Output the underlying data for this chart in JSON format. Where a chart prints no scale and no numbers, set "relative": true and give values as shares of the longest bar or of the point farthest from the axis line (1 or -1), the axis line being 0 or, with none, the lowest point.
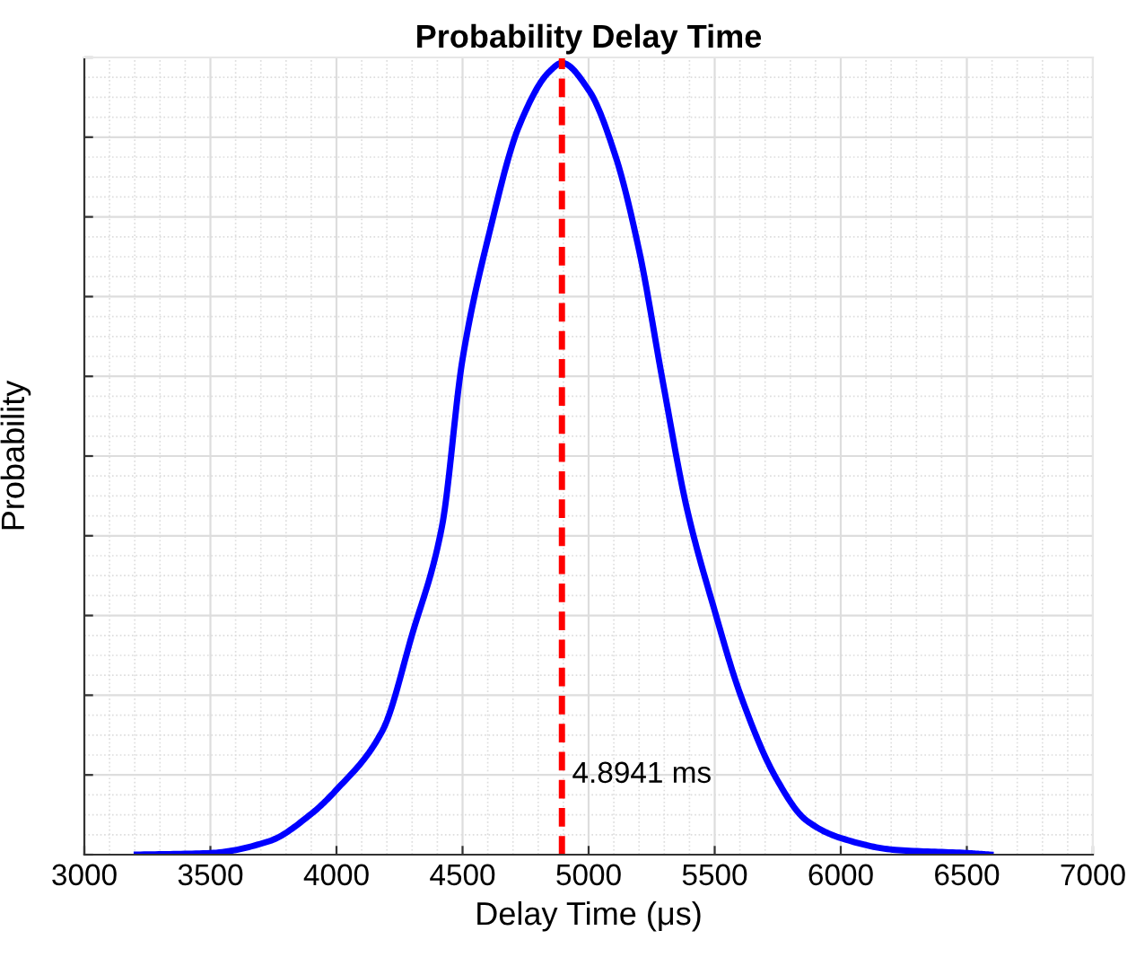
{
  "chart_data": {
    "type": "line",
    "title": "Probability Delay Time",
    "xlabel": "Delay Time (μs)",
    "ylabel": "Probability",
    "relative": true,
    "x": [
      3208,
      3500,
      3733,
      3898,
      4000,
      4183,
      4300,
      4418,
      4500,
      4606,
      4725,
      4844,
      4894,
      5000,
      5106,
      5201,
      5295,
      5390,
      5500,
      5601,
      5743,
      5861,
      6000,
      6217,
      6500,
      6594
    ],
    "series": [
      {
        "color": "#0000ff",
        "values": [
          0,
          0.002,
          0.017,
          0.051,
          0.082,
          0.157,
          0.278,
          0.414,
          0.626,
          0.785,
          0.921,
          0.989,
          1,
          0.966,
          0.883,
          0.762,
          0.596,
          0.437,
          0.308,
          0.203,
          0.097,
          0.044,
          0.021,
          0.006,
          0.002,
          0
        ]
      }
    ],
    "xlim": [
      3000,
      7000
    ],
    "xticks": [
      3000,
      3500,
      4000,
      4500,
      5000,
      5500,
      6000,
      6500,
      7000
    ],
    "ref_lines": [
      {
        "axis": "x",
        "value": 4894.1,
        "label": "4.8941 ms",
        "color": "#ff0000",
        "line_style": "dashed"
      }
    ],
    "grid": true,
    "line_style": "solid",
    "marker": "none"
  }
}
